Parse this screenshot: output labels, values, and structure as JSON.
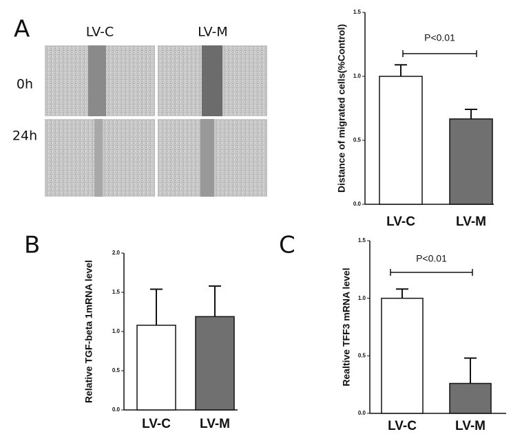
{
  "figure": {
    "panel_labels": [
      "A",
      "B",
      "C"
    ],
    "image_columns": [
      "LV-C",
      "LV-M"
    ],
    "image_rows": [
      "0h",
      "24h"
    ]
  },
  "chart_data": [
    {
      "type": "bar",
      "ylabel": "Distance of migrated cells(%Control)",
      "categories": [
        "LV-C",
        "LV-M"
      ],
      "values": [
        1.0,
        0.667
      ],
      "errors": [
        0.09,
        0.075
      ],
      "colors": [
        "#ffffff",
        "#707070"
      ],
      "ylim": [
        0,
        1.5
      ],
      "yticks": [
        {
          "value": 0,
          "label": "0.0"
        },
        {
          "value": 0.5,
          "label": "0.5"
        },
        {
          "value": 1,
          "label": "1.0"
        },
        {
          "value": 1.5,
          "label": "1.5"
        }
      ],
      "annotation": "P<0.01"
    },
    {
      "type": "bar",
      "ylabel": "Relative TGF-beta 1mRNA level",
      "categories": [
        "LV-C",
        "LV-M"
      ],
      "values": [
        1.08,
        1.19
      ],
      "errors": [
        0.46,
        0.39
      ],
      "colors": [
        "#ffffff",
        "#707070"
      ],
      "ylim": [
        0,
        2
      ],
      "yticks": [
        {
          "value": 0,
          "label": "0.0"
        },
        {
          "value": 0.5,
          "label": "0.5"
        },
        {
          "value": 1,
          "label": "1.0"
        },
        {
          "value": 1.5,
          "label": "1.5"
        },
        {
          "value": 2,
          "label": "2.0"
        }
      ]
    },
    {
      "type": "bar",
      "ylabel": "Realtive TFF3 mRNA level",
      "categories": [
        "LV-C",
        "LV-M"
      ],
      "values": [
        1.0,
        0.26
      ],
      "errors": [
        0.08,
        0.22
      ],
      "colors": [
        "#ffffff",
        "#707070"
      ],
      "ylim": [
        0,
        1.5
      ],
      "yticks": [
        {
          "value": 0,
          "label": "0.0"
        },
        {
          "value": 0.5,
          "label": "0.5"
        },
        {
          "value": 1,
          "label": "1.0"
        },
        {
          "value": 1.5,
          "label": "1.5"
        }
      ],
      "annotation": "P<0.01"
    }
  ]
}
